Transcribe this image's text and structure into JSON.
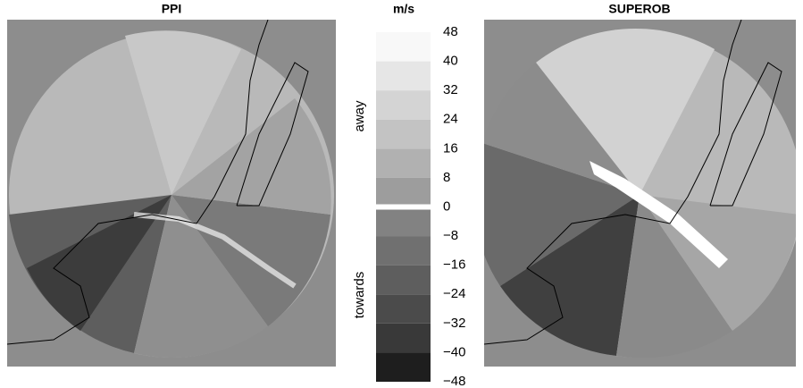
{
  "chart_data": {
    "type": "colorbar",
    "panels": [
      {
        "title": "PPI"
      },
      {
        "title": "SUPEROB"
      }
    ],
    "title": "m/s",
    "labels": {
      "away": "away",
      "towards": "towards"
    },
    "ylim": [
      -48,
      48
    ],
    "yticks": [
      48,
      40,
      32,
      24,
      16,
      8,
      0,
      {
        "value": -8,
        "label": "−8"
      },
      {
        "value": -16,
        "label": "−16"
      },
      {
        "value": -24,
        "label": "−24"
      },
      {
        "value": -32,
        "label": "−32"
      },
      {
        "value": -40,
        "label": "−40"
      },
      {
        "value": -48,
        "label": "−48"
      }
    ],
    "colors": [
      "#f8f8f8",
      "#e6e6e6",
      "#d4d4d4",
      "#c3c3c3",
      "#b1b1b1",
      "#9d9d9d",
      "#828282",
      "#707070",
      "#5e5e5e",
      "#4b4b4b",
      "#393939",
      "#1e1e1e"
    ]
  }
}
